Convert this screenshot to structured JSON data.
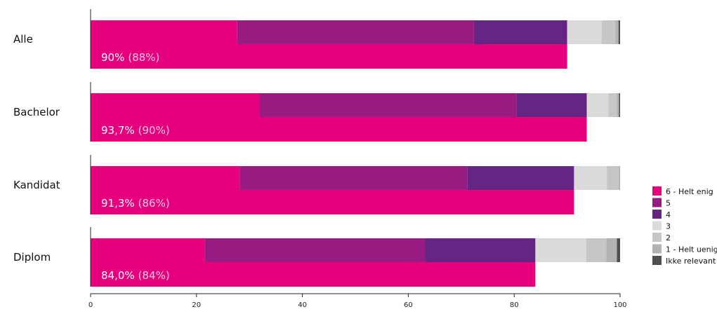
{
  "chart_data": {
    "type": "bar",
    "orientation": "horizontal",
    "stacked": true,
    "categories": [
      "Alle",
      "Bachelor",
      "Kandidat",
      "Diplom"
    ],
    "series": [
      {
        "name": "6 - Helt enig",
        "color": "#e6007e",
        "values": [
          27.7,
          31.9,
          28.2,
          21.6
        ]
      },
      {
        "name": "5",
        "color": "#971b80",
        "values": [
          44.7,
          48.5,
          43.0,
          41.6
        ]
      },
      {
        "name": "4",
        "color": "#652582",
        "values": [
          17.6,
          13.3,
          20.1,
          20.8
        ]
      },
      {
        "name": "3",
        "color": "#dadada",
        "values": [
          6.5,
          4.1,
          6.2,
          9.6
        ]
      },
      {
        "name": "2",
        "color": "#c6c6c6",
        "values": [
          2.6,
          1.6,
          2.3,
          3.8
        ]
      },
      {
        "name": "1 - Helt uenig",
        "color": "#b2b2b2",
        "values": [
          0.6,
          0.4,
          0.2,
          2.0
        ]
      },
      {
        "name": "Ikke relevant",
        "color": "#4f4f4f",
        "values": [
          0.3,
          0.2,
          0.0,
          0.6
        ]
      }
    ],
    "summary_bar": {
      "color": "#e6007e",
      "values": [
        90.0,
        93.7,
        91.3,
        84.0
      ],
      "labels": [
        "90%",
        "93,7%",
        "91,3%",
        "84,0%"
      ],
      "previous_labels": [
        "(88%)",
        "(90%)",
        "(86%)",
        "(84%)"
      ]
    },
    "xlim": [
      0,
      100
    ],
    "xticks": [
      "0",
      "20",
      "40",
      "60",
      "80",
      "100"
    ],
    "legend_position": "right",
    "grid": false
  }
}
